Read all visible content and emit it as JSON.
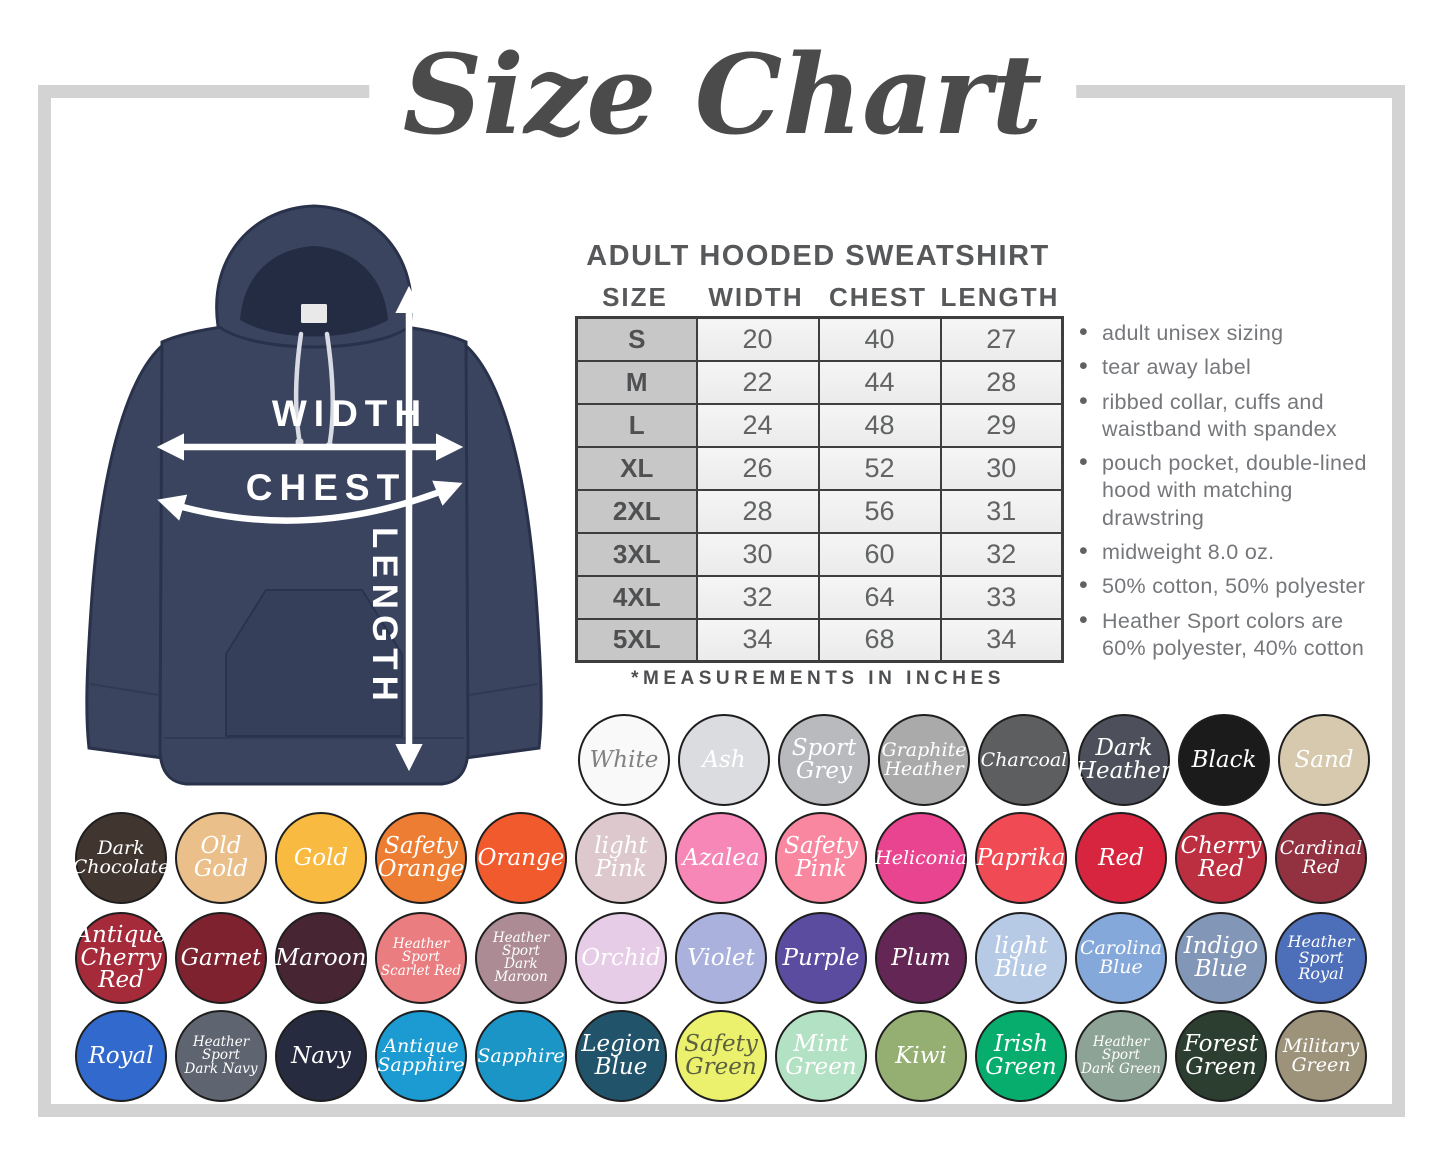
{
  "title": "Size Chart",
  "product_heading": "ADULT HOODED SWEATSHIRT",
  "diagram": {
    "width_label": "WIDTH",
    "chest_label": "CHEST",
    "length_label": "LENGTH"
  },
  "size_table": {
    "columns": [
      "SIZE",
      "WIDTH",
      "CHEST",
      "LENGTH"
    ],
    "rows": [
      [
        "S",
        "20",
        "40",
        "27"
      ],
      [
        "M",
        "22",
        "44",
        "28"
      ],
      [
        "L",
        "24",
        "48",
        "29"
      ],
      [
        "XL",
        "26",
        "52",
        "30"
      ],
      [
        "2XL",
        "28",
        "56",
        "31"
      ],
      [
        "3XL",
        "30",
        "60",
        "32"
      ],
      [
        "4XL",
        "32",
        "64",
        "33"
      ],
      [
        "5XL",
        "34",
        "68",
        "34"
      ]
    ],
    "footnote": "*MEASUREMENTS IN INCHES"
  },
  "features": [
    "adult unisex sizing",
    "tear away label",
    "ribbed collar, cuffs and waistband with spandex",
    "pouch pocket, double-lined hood with matching drawstring",
    "midweight 8.0 oz.",
    "50% cotton, 50% polyester",
    "Heather Sport colors are 60% polyester, 40% cotton"
  ],
  "accent_colors": {
    "frame_grey": "#d3d3d3",
    "hoodie_navy": "#3a445f",
    "table_header_grey": "#c7c7c7",
    "table_cell_grey": "#f0f0f0"
  },
  "swatch_rows": [
    [
      {
        "name": "White",
        "hex": "#f9f9f9",
        "lines": [
          "White"
        ],
        "text_color": "#818181"
      },
      {
        "name": "Ash",
        "hex": "#dadce0",
        "lines": [
          "Ash"
        ]
      },
      {
        "name": "Sport Grey",
        "hex": "#b8babe",
        "lines": [
          "Sport",
          "Grey"
        ]
      },
      {
        "name": "Graphite Heather",
        "hex": "#a9aaa9",
        "lines": [
          "Graphite",
          "Heather"
        ]
      },
      {
        "name": "Charcoal",
        "hex": "#5d5e60",
        "lines": [
          "Charcoal"
        ]
      },
      {
        "name": "Dark Heather",
        "hex": "#4d505a",
        "lines": [
          "Dark",
          "Heather"
        ]
      },
      {
        "name": "Black",
        "hex": "#1b1b1b",
        "lines": [
          "Black"
        ]
      },
      {
        "name": "Sand",
        "hex": "#d6c9ae",
        "lines": [
          "Sand"
        ]
      }
    ],
    [
      {
        "name": "Dark Chocolate",
        "hex": "#40352f",
        "lines": [
          "Dark",
          "Chocolate"
        ]
      },
      {
        "name": "Old Gold",
        "hex": "#eabf8a",
        "lines": [
          "Old",
          "Gold"
        ]
      },
      {
        "name": "Gold",
        "hex": "#f9ba41",
        "lines": [
          "Gold"
        ]
      },
      {
        "name": "Safety Orange",
        "hex": "#ed7d33",
        "lines": [
          "Safety",
          "Orange"
        ]
      },
      {
        "name": "Orange",
        "hex": "#f15a2d",
        "lines": [
          "Orange"
        ]
      },
      {
        "name": "Light Pink",
        "hex": "#ddc8cd",
        "lines": [
          "light",
          "Pink"
        ]
      },
      {
        "name": "Azalea",
        "hex": "#f687b7",
        "lines": [
          "Azalea"
        ]
      },
      {
        "name": "Safety Pink",
        "hex": "#f9879f",
        "lines": [
          "Safety",
          "Pink"
        ]
      },
      {
        "name": "Heliconia",
        "hex": "#e8448f",
        "lines": [
          "Heliconia"
        ]
      },
      {
        "name": "Paprika",
        "hex": "#f04a55",
        "lines": [
          "Paprika"
        ]
      },
      {
        "name": "Red",
        "hex": "#d7253f",
        "lines": [
          "Red"
        ]
      },
      {
        "name": "Cherry Red",
        "hex": "#bc2f40",
        "lines": [
          "Cherry",
          "Red"
        ]
      },
      {
        "name": "Cardinal Red",
        "hex": "#923140",
        "lines": [
          "Cardinal",
          "Red"
        ]
      }
    ],
    [
      {
        "name": "Antique Cherry Red",
        "hex": "#a52a3a",
        "lines": [
          "Antique",
          "Cherry",
          "Red"
        ]
      },
      {
        "name": "Garnet",
        "hex": "#7e2230",
        "lines": [
          "Garnet"
        ]
      },
      {
        "name": "Maroon",
        "hex": "#472532",
        "lines": [
          "Maroon"
        ]
      },
      {
        "name": "Heather Sport Scarlet Red",
        "hex": "#e97d7f",
        "lines": [
          "Heather Sport",
          "Scarlet Red"
        ]
      },
      {
        "name": "Heather Sport Dark Maroon",
        "hex": "#ac8b94",
        "lines": [
          "Heather Sport",
          "Dark Maroon"
        ]
      },
      {
        "name": "Orchid",
        "hex": "#e6cce6",
        "lines": [
          "Orchid"
        ]
      },
      {
        "name": "Violet",
        "hex": "#aab1dd",
        "lines": [
          "Violet"
        ]
      },
      {
        "name": "Purple",
        "hex": "#5b4c9f",
        "lines": [
          "Purple"
        ]
      },
      {
        "name": "Plum",
        "hex": "#642655",
        "lines": [
          "Plum"
        ]
      },
      {
        "name": "Light Blue",
        "hex": "#b7cae5",
        "lines": [
          "light",
          "Blue"
        ]
      },
      {
        "name": "Carolina Blue",
        "hex": "#85a8db",
        "lines": [
          "Carolina",
          "Blue"
        ]
      },
      {
        "name": "Indigo Blue",
        "hex": "#8296b7",
        "lines": [
          "Indigo",
          "Blue"
        ]
      },
      {
        "name": "Heather Sport Royal",
        "hex": "#4d6eb9",
        "lines": [
          "Heather",
          "Sport Royal"
        ]
      }
    ],
    [
      {
        "name": "Royal",
        "hex": "#3169cc",
        "lines": [
          "Royal"
        ]
      },
      {
        "name": "Heather Sport Dark Navy",
        "hex": "#5f6471",
        "lines": [
          "Heather Sport",
          "Dark Navy"
        ]
      },
      {
        "name": "Navy",
        "hex": "#262b3f",
        "lines": [
          "Navy"
        ]
      },
      {
        "name": "Antique Sapphire",
        "hex": "#1b9bd1",
        "lines": [
          "Antique",
          "Sapphire"
        ]
      },
      {
        "name": "Sapphire",
        "hex": "#1b94c6",
        "lines": [
          "Sapphire"
        ]
      },
      {
        "name": "Legion Blue",
        "hex": "#21546b",
        "lines": [
          "Legion",
          "Blue"
        ]
      },
      {
        "name": "Safety Green",
        "hex": "#ebf16d",
        "lines": [
          "Safety",
          "Green"
        ],
        "text_color": "#5a6040"
      },
      {
        "name": "Mint Green",
        "hex": "#b3e1c3",
        "lines": [
          "Mint",
          "Green"
        ]
      },
      {
        "name": "Kiwi",
        "hex": "#95af73",
        "lines": [
          "Kiwi"
        ]
      },
      {
        "name": "Irish Green",
        "hex": "#06ad6c",
        "lines": [
          "Irish",
          "Green"
        ]
      },
      {
        "name": "Heather Sport Dark Green",
        "hex": "#8ca395",
        "lines": [
          "Heather Sport",
          "Dark Green"
        ]
      },
      {
        "name": "Forest Green",
        "hex": "#2b3e2f",
        "lines": [
          "Forest",
          "Green"
        ]
      },
      {
        "name": "Military Green",
        "hex": "#9d927a",
        "lines": [
          "Military",
          "Green"
        ]
      }
    ]
  ]
}
